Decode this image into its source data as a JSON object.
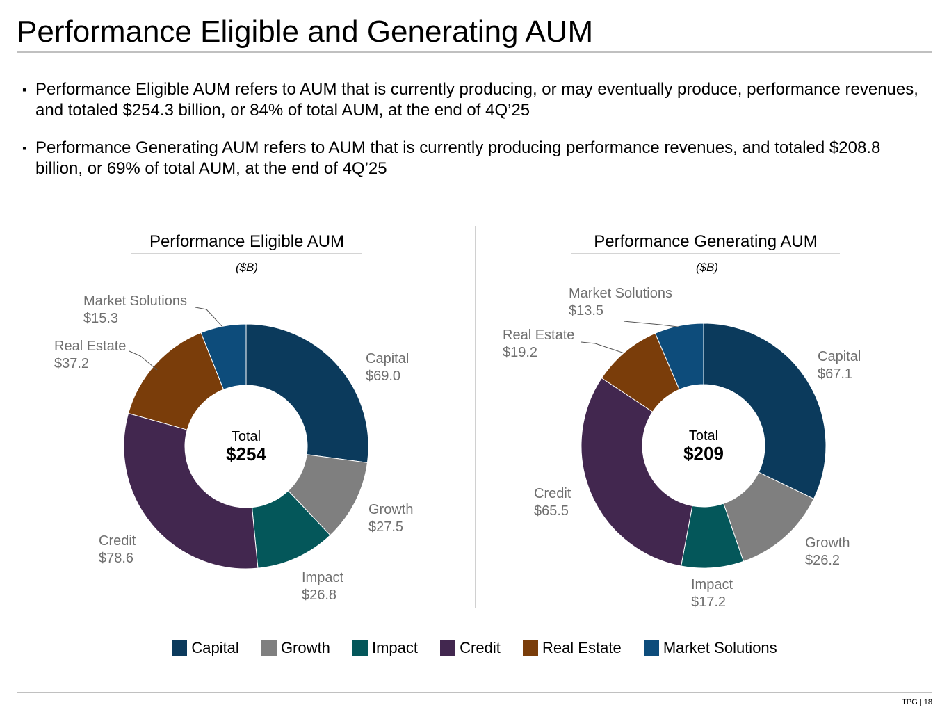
{
  "page": {
    "title": "Performance Eligible and Generating AUM",
    "bullets": [
      "Performance Eligible AUM refers to AUM that is currently producing, or may eventually produce, performance revenues, and totaled $254.3 billion, or 84% of total AUM, at the end of 4Q’25",
      "Performance Generating AUM refers to AUM that is currently producing performance revenues, and totaled $208.8 billion, or 69% of total AUM, at the end of 4Q’25"
    ],
    "footer": "TPG | 18"
  },
  "colors": {
    "Capital": "#0b3a5c",
    "Growth": "#7f7f7f",
    "Impact": "#04575a",
    "Credit": "#42274f",
    "Real Estate": "#7a3d0a",
    "Market Solutions": "#0d4c7b",
    "label_text": "#6f6f6f"
  },
  "legend": [
    "Capital",
    "Growth",
    "Impact",
    "Credit",
    "Real Estate",
    "Market Solutions"
  ],
  "chart_data": [
    {
      "type": "pie",
      "donut": true,
      "title": "Performance Eligible AUM",
      "unit": "($B)",
      "total_label": "Total",
      "total_value": "$254",
      "categories": [
        "Capital",
        "Growth",
        "Impact",
        "Credit",
        "Real Estate",
        "Market Solutions"
      ],
      "values": [
        69.0,
        27.5,
        26.8,
        78.6,
        37.2,
        15.3
      ],
      "value_labels": [
        "$69.0",
        "$27.5",
        "$26.8",
        "$78.6",
        "$37.2",
        "$15.3"
      ]
    },
    {
      "type": "pie",
      "donut": true,
      "title": "Performance Generating AUM",
      "unit": "($B)",
      "total_label": "Total",
      "total_value": "$209",
      "categories": [
        "Capital",
        "Growth",
        "Impact",
        "Credit",
        "Real Estate",
        "Market Solutions"
      ],
      "values": [
        67.1,
        26.2,
        17.2,
        65.5,
        19.2,
        13.5
      ],
      "value_labels": [
        "$67.1",
        "$26.2",
        "$17.2",
        "$65.5",
        "$19.2",
        "$13.5"
      ]
    }
  ]
}
